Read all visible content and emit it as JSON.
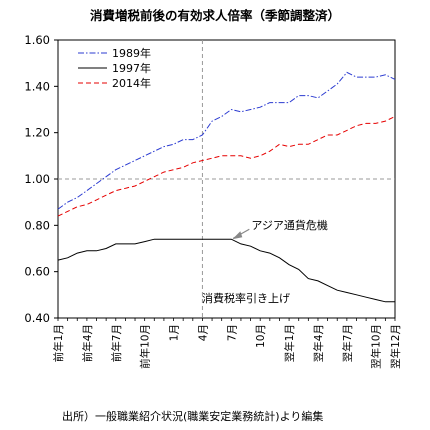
{
  "chart_data": {
    "type": "line",
    "title": "消費増税前後の有効求人倍率（季節調整済）",
    "ylim": [
      0.4,
      1.6
    ],
    "yticks": [
      "0.40",
      "0.60",
      "0.80",
      "1.00",
      "1.20",
      "1.40",
      "1.60"
    ],
    "ytick_values": [
      0.4,
      0.6,
      0.8,
      1.0,
      1.2,
      1.4,
      1.6
    ],
    "x_categories": [
      "前年1月",
      "前年2月",
      "前年3月",
      "前年4月",
      "前年5月",
      "前年6月",
      "前年7月",
      "前年8月",
      "前年9月",
      "前年10月",
      "前年11月",
      "前年12月",
      "1月",
      "2月",
      "3月",
      "4月",
      "5月",
      "6月",
      "7月",
      "8月",
      "9月",
      "10月",
      "11月",
      "12月",
      "翌年1月",
      "翌年2月",
      "翌年3月",
      "翌年4月",
      "翌年5月",
      "翌年6月",
      "翌年7月",
      "翌年8月",
      "翌年9月",
      "翌年10月",
      "翌年11月",
      "翌年12月"
    ],
    "xtick_labels": [
      {
        "index": 0,
        "label": "前年1月"
      },
      {
        "index": 3,
        "label": "前年4月"
      },
      {
        "index": 6,
        "label": "前年7月"
      },
      {
        "index": 9,
        "label": "前年10月"
      },
      {
        "index": 12,
        "label": "1月"
      },
      {
        "index": 15,
        "label": "4月"
      },
      {
        "index": 18,
        "label": "7月"
      },
      {
        "index": 21,
        "label": "10月"
      },
      {
        "index": 24,
        "label": "翌年1月"
      },
      {
        "index": 27,
        "label": "翌年4月"
      },
      {
        "index": 30,
        "label": "翌年7月"
      },
      {
        "index": 33,
        "label": "翌年10月"
      },
      {
        "index": 35,
        "label": "翌年12月"
      }
    ],
    "series": [
      {
        "name": "1989年",
        "color": "#2b3bd1",
        "style": "dashdot",
        "values": [
          0.87,
          0.9,
          0.92,
          0.95,
          0.98,
          1.01,
          1.04,
          1.06,
          1.08,
          1.1,
          1.12,
          1.14,
          1.15,
          1.17,
          1.17,
          1.19,
          1.25,
          1.27,
          1.3,
          1.29,
          1.3,
          1.31,
          1.33,
          1.33,
          1.33,
          1.36,
          1.36,
          1.35,
          1.38,
          1.41,
          1.46,
          1.44,
          1.44,
          1.44,
          1.45,
          1.43
        ]
      },
      {
        "name": "1997年",
        "color": "#000000",
        "style": "solid",
        "values": [
          0.65,
          0.66,
          0.68,
          0.69,
          0.69,
          0.7,
          0.72,
          0.72,
          0.72,
          0.73,
          0.74,
          0.74,
          0.74,
          0.74,
          0.74,
          0.74,
          0.74,
          0.74,
          0.74,
          0.72,
          0.71,
          0.69,
          0.68,
          0.66,
          0.63,
          0.61,
          0.57,
          0.56,
          0.54,
          0.52,
          0.51,
          0.5,
          0.49,
          0.48,
          0.47,
          0.47
        ]
      },
      {
        "name": "2014年",
        "color": "#e60000",
        "style": "dashed",
        "values": [
          0.84,
          0.86,
          0.88,
          0.89,
          0.91,
          0.93,
          0.95,
          0.96,
          0.97,
          0.99,
          1.01,
          1.03,
          1.04,
          1.05,
          1.07,
          1.08,
          1.09,
          1.1,
          1.1,
          1.1,
          1.09,
          1.1,
          1.12,
          1.15,
          1.14,
          1.15,
          1.15,
          1.17,
          1.19,
          1.19,
          1.21,
          1.23,
          1.24,
          1.24,
          1.25,
          1.27
        ]
      }
    ],
    "reference_lines": {
      "horizontal_value": 1.0,
      "vertical_category": "4月"
    },
    "annotations": {
      "asia_crisis": "アジア通貨危機",
      "tax_hike": "消費税率引き上げ"
    },
    "legend_position": "top-left",
    "grid": false
  },
  "source_note": "出所）一般職業紹介状況(職業安定業務統計)より編集"
}
